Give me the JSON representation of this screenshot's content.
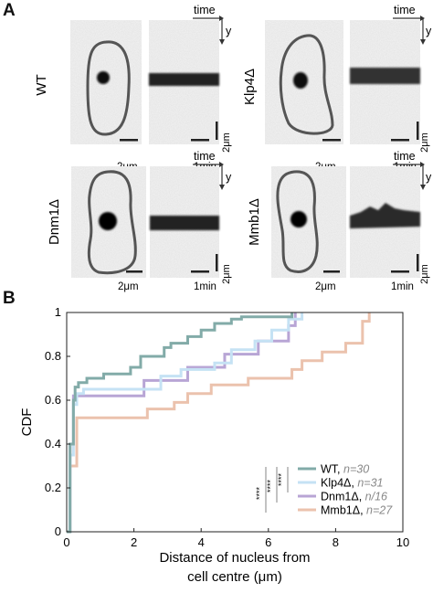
{
  "panel_a": {
    "letter": "A",
    "cells": [
      {
        "strain": "WT",
        "scale_cell": "2μm",
        "scale_time": "1min",
        "scale_y": "2μm",
        "axis_time": "time",
        "axis_y": "y"
      },
      {
        "strain": "Klp4Δ",
        "scale_cell": "2μm",
        "scale_time": "1min",
        "scale_y": "2μm",
        "axis_time": "time",
        "axis_y": "y"
      },
      {
        "strain": "Dnm1Δ",
        "scale_cell": "2μm",
        "scale_time": "1min",
        "scale_y": "2μm",
        "axis_time": "time",
        "axis_y": "y"
      },
      {
        "strain": "Mmb1Δ",
        "scale_cell": "2μm",
        "scale_time": "1min",
        "scale_y": "2μm",
        "axis_time": "time",
        "axis_y": "y"
      }
    ]
  },
  "panel_b": {
    "letter": "B",
    "significance": [
      "****",
      "****",
      "****"
    ]
  },
  "chart_data": {
    "type": "line",
    "xlabel": "Distance of nucleus from cell centre (μm)",
    "xlabel_lines": [
      "Distance of nucleus from",
      "cell centre (μm)"
    ],
    "ylabel": "CDF",
    "xlim": [
      0,
      10
    ],
    "ylim": [
      0,
      1
    ],
    "xticks": [
      0,
      2,
      4,
      6,
      8,
      10
    ],
    "yticks": [
      0,
      0.2,
      0.4,
      0.6,
      0.8,
      1
    ],
    "grid": false,
    "legend_position": "bottom-right",
    "series": [
      {
        "name": "WT",
        "n_label": "n=30",
        "color": "#82aba8",
        "x": [
          0,
          0.1,
          0.2,
          0.25,
          0.35,
          0.6,
          1.0,
          1.1,
          1.9,
          2.2,
          2.9,
          3.1,
          3.6,
          4.0,
          4.4,
          4.9,
          5.2,
          6.7
        ],
        "y": [
          0,
          0.4,
          0.6,
          0.66,
          0.68,
          0.7,
          0.7,
          0.72,
          0.75,
          0.8,
          0.84,
          0.86,
          0.89,
          0.92,
          0.95,
          0.97,
          0.98,
          1.0
        ]
      },
      {
        "name": "Klp4Δ",
        "n_label": "n=31",
        "color": "#c5e2f4",
        "x": [
          0,
          0.1,
          0.2,
          0.3,
          0.5,
          2.6,
          2.8,
          3.4,
          4.4,
          4.9,
          5.6,
          6.1,
          6.6,
          7.0
        ],
        "y": [
          0,
          0.35,
          0.58,
          0.63,
          0.65,
          0.65,
          0.71,
          0.74,
          0.77,
          0.83,
          0.87,
          0.92,
          0.97,
          1.0
        ]
      },
      {
        "name": "Dnm1Δ",
        "n_label": "n/16",
        "color": "#b8a5d5",
        "x": [
          0,
          0.1,
          0.2,
          2.3,
          3.6,
          4.7,
          5.7,
          6.6,
          6.8
        ],
        "y": [
          0,
          0.4,
          0.62,
          0.69,
          0.75,
          0.81,
          0.87,
          0.94,
          1.0
        ]
      },
      {
        "name": "Mmb1Δ",
        "n_label": "n=27",
        "color": "#ebc2ad",
        "x": [
          0,
          0.1,
          0.3,
          2.1,
          2.4,
          3.2,
          3.6,
          4.3,
          5.4,
          6.7,
          7.0,
          7.6,
          8.3,
          8.8,
          9.0
        ],
        "y": [
          0,
          0.3,
          0.52,
          0.52,
          0.56,
          0.59,
          0.63,
          0.67,
          0.7,
          0.74,
          0.78,
          0.82,
          0.86,
          0.96,
          1.0
        ]
      }
    ]
  }
}
